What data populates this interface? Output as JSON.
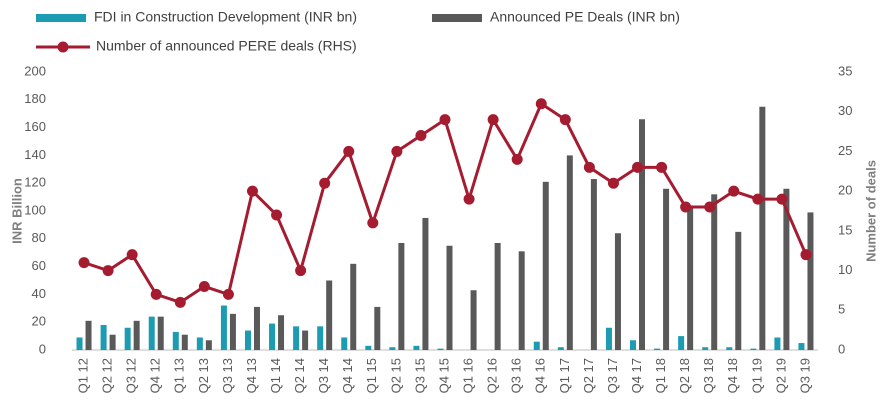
{
  "chart_data": {
    "type": "bar_line",
    "categories": [
      "Q1 12",
      "Q2 12",
      "Q3 12",
      "Q4 12",
      "Q1 13",
      "Q2 13",
      "Q3 13",
      "Q4 13",
      "Q1 14",
      "Q2 14",
      "Q3 14",
      "Q4 14",
      "Q1 15",
      "Q2 15",
      "Q3 15",
      "Q4 15",
      "Q1 16",
      "Q2 16",
      "Q3 16",
      "Q4 16",
      "Q1 17",
      "Q2 17",
      "Q3 17",
      "Q4 17",
      "Q1 18",
      "Q2 18",
      "Q3 18",
      "Q4 18",
      "Q1 19",
      "Q2 19",
      "Q3 19"
    ],
    "series": [
      {
        "name": "FDI in Construction Development (INR bn)",
        "type": "bar",
        "color": "#1b9cb3",
        "values": [
          9,
          18,
          16,
          24,
          13,
          9,
          32,
          14,
          19,
          17,
          17,
          9,
          3,
          2,
          3,
          1,
          0,
          0,
          0,
          6,
          2,
          0,
          16,
          7,
          1,
          10,
          2,
          2,
          1,
          9,
          5
        ]
      },
      {
        "name": "Announced PE Deals (INR bn)",
        "type": "bar",
        "color": "#595959",
        "values": [
          21,
          11,
          21,
          24,
          11,
          7,
          26,
          31,
          25,
          14,
          50,
          62,
          31,
          77,
          95,
          75,
          43,
          77,
          71,
          121,
          140,
          123,
          84,
          166,
          116,
          104,
          112,
          85,
          175,
          116,
          99
        ]
      },
      {
        "name": "Number of announced PERE deals (RHS)",
        "type": "line",
        "color": "#a51c30",
        "axis": "y2",
        "values": [
          11,
          10,
          12,
          7,
          6,
          8,
          7,
          20,
          17,
          10,
          21,
          25,
          16,
          25,
          27,
          29,
          19,
          29,
          24,
          31,
          29,
          23,
          21,
          23,
          23,
          18,
          18,
          20,
          19,
          19,
          12
        ]
      }
    ],
    "ylabel": "INR Billion",
    "y2label": "Number of deals",
    "ylim": [
      0,
      200
    ],
    "yticks": [
      0,
      20,
      40,
      60,
      80,
      100,
      120,
      140,
      160,
      180,
      200
    ],
    "y2lim": [
      0,
      35
    ],
    "y2ticks": [
      0,
      5,
      10,
      15,
      20,
      25,
      30,
      35
    ],
    "grid": false
  }
}
